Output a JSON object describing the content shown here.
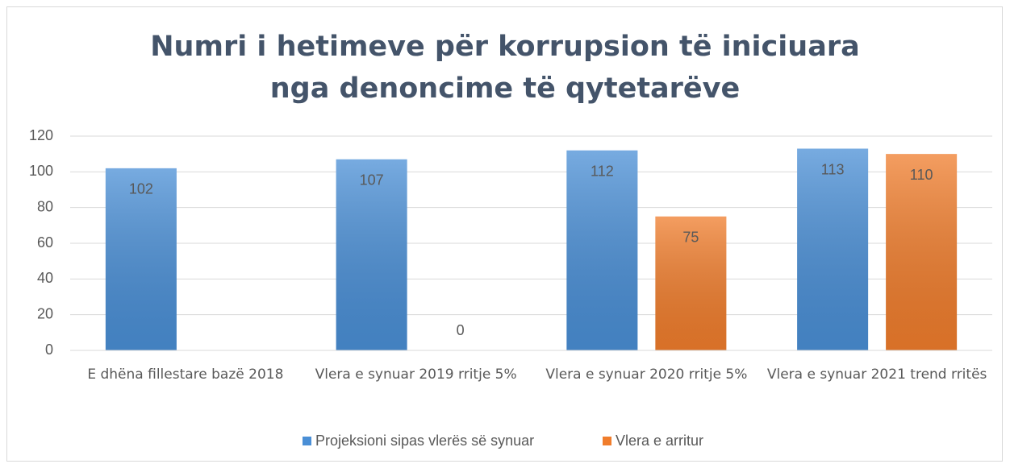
{
  "chart_data": {
    "type": "bar",
    "title": "Numri i hetimeve për korrupsion të iniciuara nga denoncime të qytetarëve",
    "categories": [
      "E dhëna fillestare bazë 2018",
      "Vlera e synuar 2019 rritje 5%",
      "Vlera e synuar 2020 rritje 5%",
      "Vlera e synuar 2021 trend rritës"
    ],
    "series": [
      {
        "name": "Projeksioni sipas vlerës së synuar",
        "color": "#4a8fd6",
        "values": [
          102,
          107,
          112,
          113
        ]
      },
      {
        "name": "Vlera e arritur",
        "color": "#f07d2c",
        "values": [
          null,
          0,
          75,
          110
        ]
      }
    ],
    "ylim": [
      0,
      120
    ],
    "yticks": [
      0,
      20,
      40,
      60,
      80,
      100,
      120
    ],
    "grid": true,
    "legend": "bottom"
  }
}
